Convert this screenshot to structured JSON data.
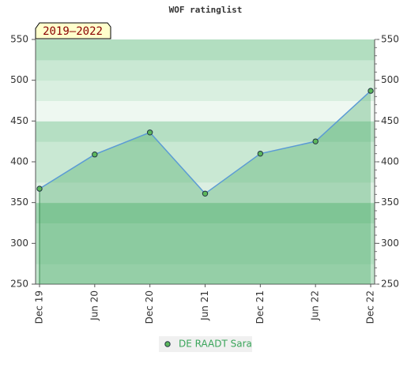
{
  "chart_data": {
    "type": "area",
    "title": "WOF ratinglist",
    "badge": "2019–2022",
    "categories": [
      "Dec 19",
      "Jun 20",
      "Dec 20",
      "Jun 21",
      "Dec 21",
      "Jun 22",
      "Dec 22"
    ],
    "series": [
      {
        "name": "DE RAADT Sara",
        "color": "#5b9bd5",
        "fill": "rgba(70,170,100,0.35)",
        "marker": "#5cb85c",
        "values": [
          367,
          409,
          436,
          361,
          410,
          425,
          487
        ]
      }
    ],
    "ylim": [
      250,
      550
    ],
    "yticks": [
      250,
      300,
      350,
      400,
      450,
      500,
      550
    ],
    "bands": [
      "#c0e4cb",
      "#b2dec0",
      "#b2dec0",
      "#9fd5b0",
      "#dcefe2",
      "#c9e8d3",
      "#c9e8d3",
      "#b5dfc3",
      "#eef8f1",
      "#d9efe0",
      "#c9e8d3",
      "#b2dec0"
    ]
  }
}
